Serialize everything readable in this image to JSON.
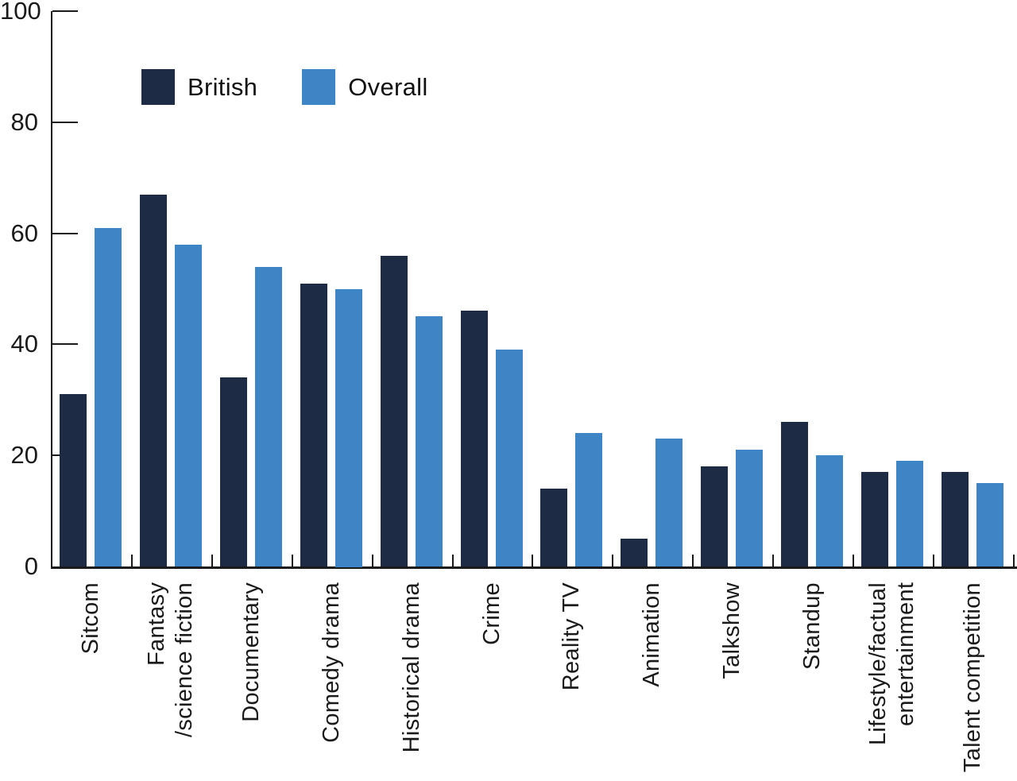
{
  "chart_data": {
    "type": "bar",
    "title": "",
    "xlabel": "",
    "ylabel": "",
    "ylim": [
      0,
      100
    ],
    "yticks": [
      0,
      20,
      40,
      60,
      80,
      100
    ],
    "grid": false,
    "legend_position": "top-left-inside",
    "categories": [
      "Sitcom",
      "Fantasy\n/science fiction",
      "Documentary",
      "Comedy drama",
      "Historical drama",
      "Crime",
      "Reality TV",
      "Animation",
      "Talkshow",
      "Standup",
      "Lifestyle/factual\nentertainment",
      "Talent competition"
    ],
    "series": [
      {
        "name": "British",
        "color": "#1D2B45",
        "values": [
          31,
          67,
          34,
          51,
          56,
          46,
          14,
          5,
          18,
          26,
          17,
          17
        ]
      },
      {
        "name": "Overall",
        "color": "#3E85C6",
        "values": [
          61,
          58,
          54,
          50,
          45,
          39,
          24,
          23,
          21,
          20,
          19,
          15
        ]
      }
    ],
    "axis_color": "#1a1a1a",
    "text_color": "#1a1a1a",
    "background_color": "#ffffff"
  }
}
